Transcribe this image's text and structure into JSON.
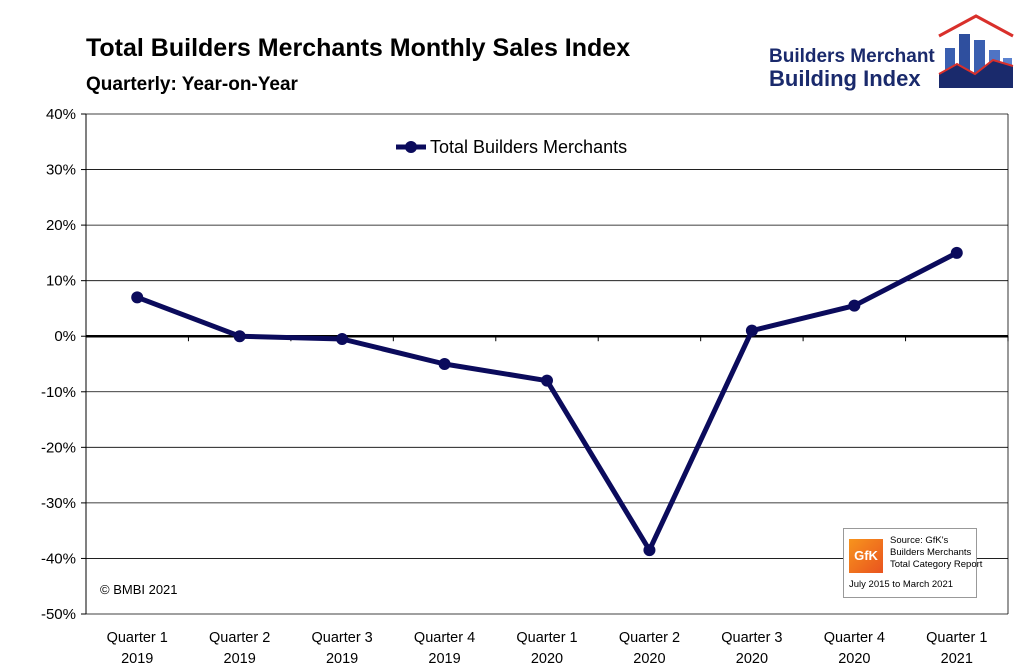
{
  "header": {
    "title": "Total Builders Merchants Monthly Sales Index",
    "subtitle": "Quarterly: Year-on-Year"
  },
  "logo": {
    "line1": "Builders Merchant",
    "line2": "Building Index"
  },
  "copyright": "© BMBI 2021",
  "source": {
    "gfk_label": "GfK",
    "lines": [
      "Source: GfK's",
      "Builders Merchants",
      "Total Category Report",
      "July 2015 to March 2021"
    ]
  },
  "colors": {
    "series": "#0b0b5c",
    "logo_blue": "#1a2a6c",
    "logo_red": "#d9302b"
  },
  "chart_data": {
    "type": "line",
    "title": "Total Builders Merchants Monthly Sales Index",
    "subtitle": "Quarterly: Year-on-Year",
    "categories": [
      [
        "Quarter 1",
        "2019"
      ],
      [
        "Quarter 2",
        "2019"
      ],
      [
        "Quarter 3",
        "2019"
      ],
      [
        "Quarter 4",
        "2019"
      ],
      [
        "Quarter 1",
        "2020"
      ],
      [
        "Quarter 2",
        "2020"
      ],
      [
        "Quarter 3",
        "2020"
      ],
      [
        "Quarter 4",
        "2020"
      ],
      [
        "Quarter 1",
        "2021"
      ]
    ],
    "series": [
      {
        "name": "Total Builders Merchants",
        "values": [
          7,
          0,
          -0.5,
          -5,
          -8,
          -38.5,
          1,
          5.5,
          15
        ]
      }
    ],
    "ylim": [
      -50,
      40
    ],
    "yticks": [
      -50,
      -40,
      -30,
      -20,
      -10,
      0,
      10,
      20,
      30,
      40
    ],
    "ytick_labels": [
      "-50%",
      "-40%",
      "-30%",
      "-20%",
      "-10%",
      "0%",
      "10%",
      "20%",
      "30%",
      "40%"
    ],
    "legend": "top-center",
    "grid": true
  }
}
